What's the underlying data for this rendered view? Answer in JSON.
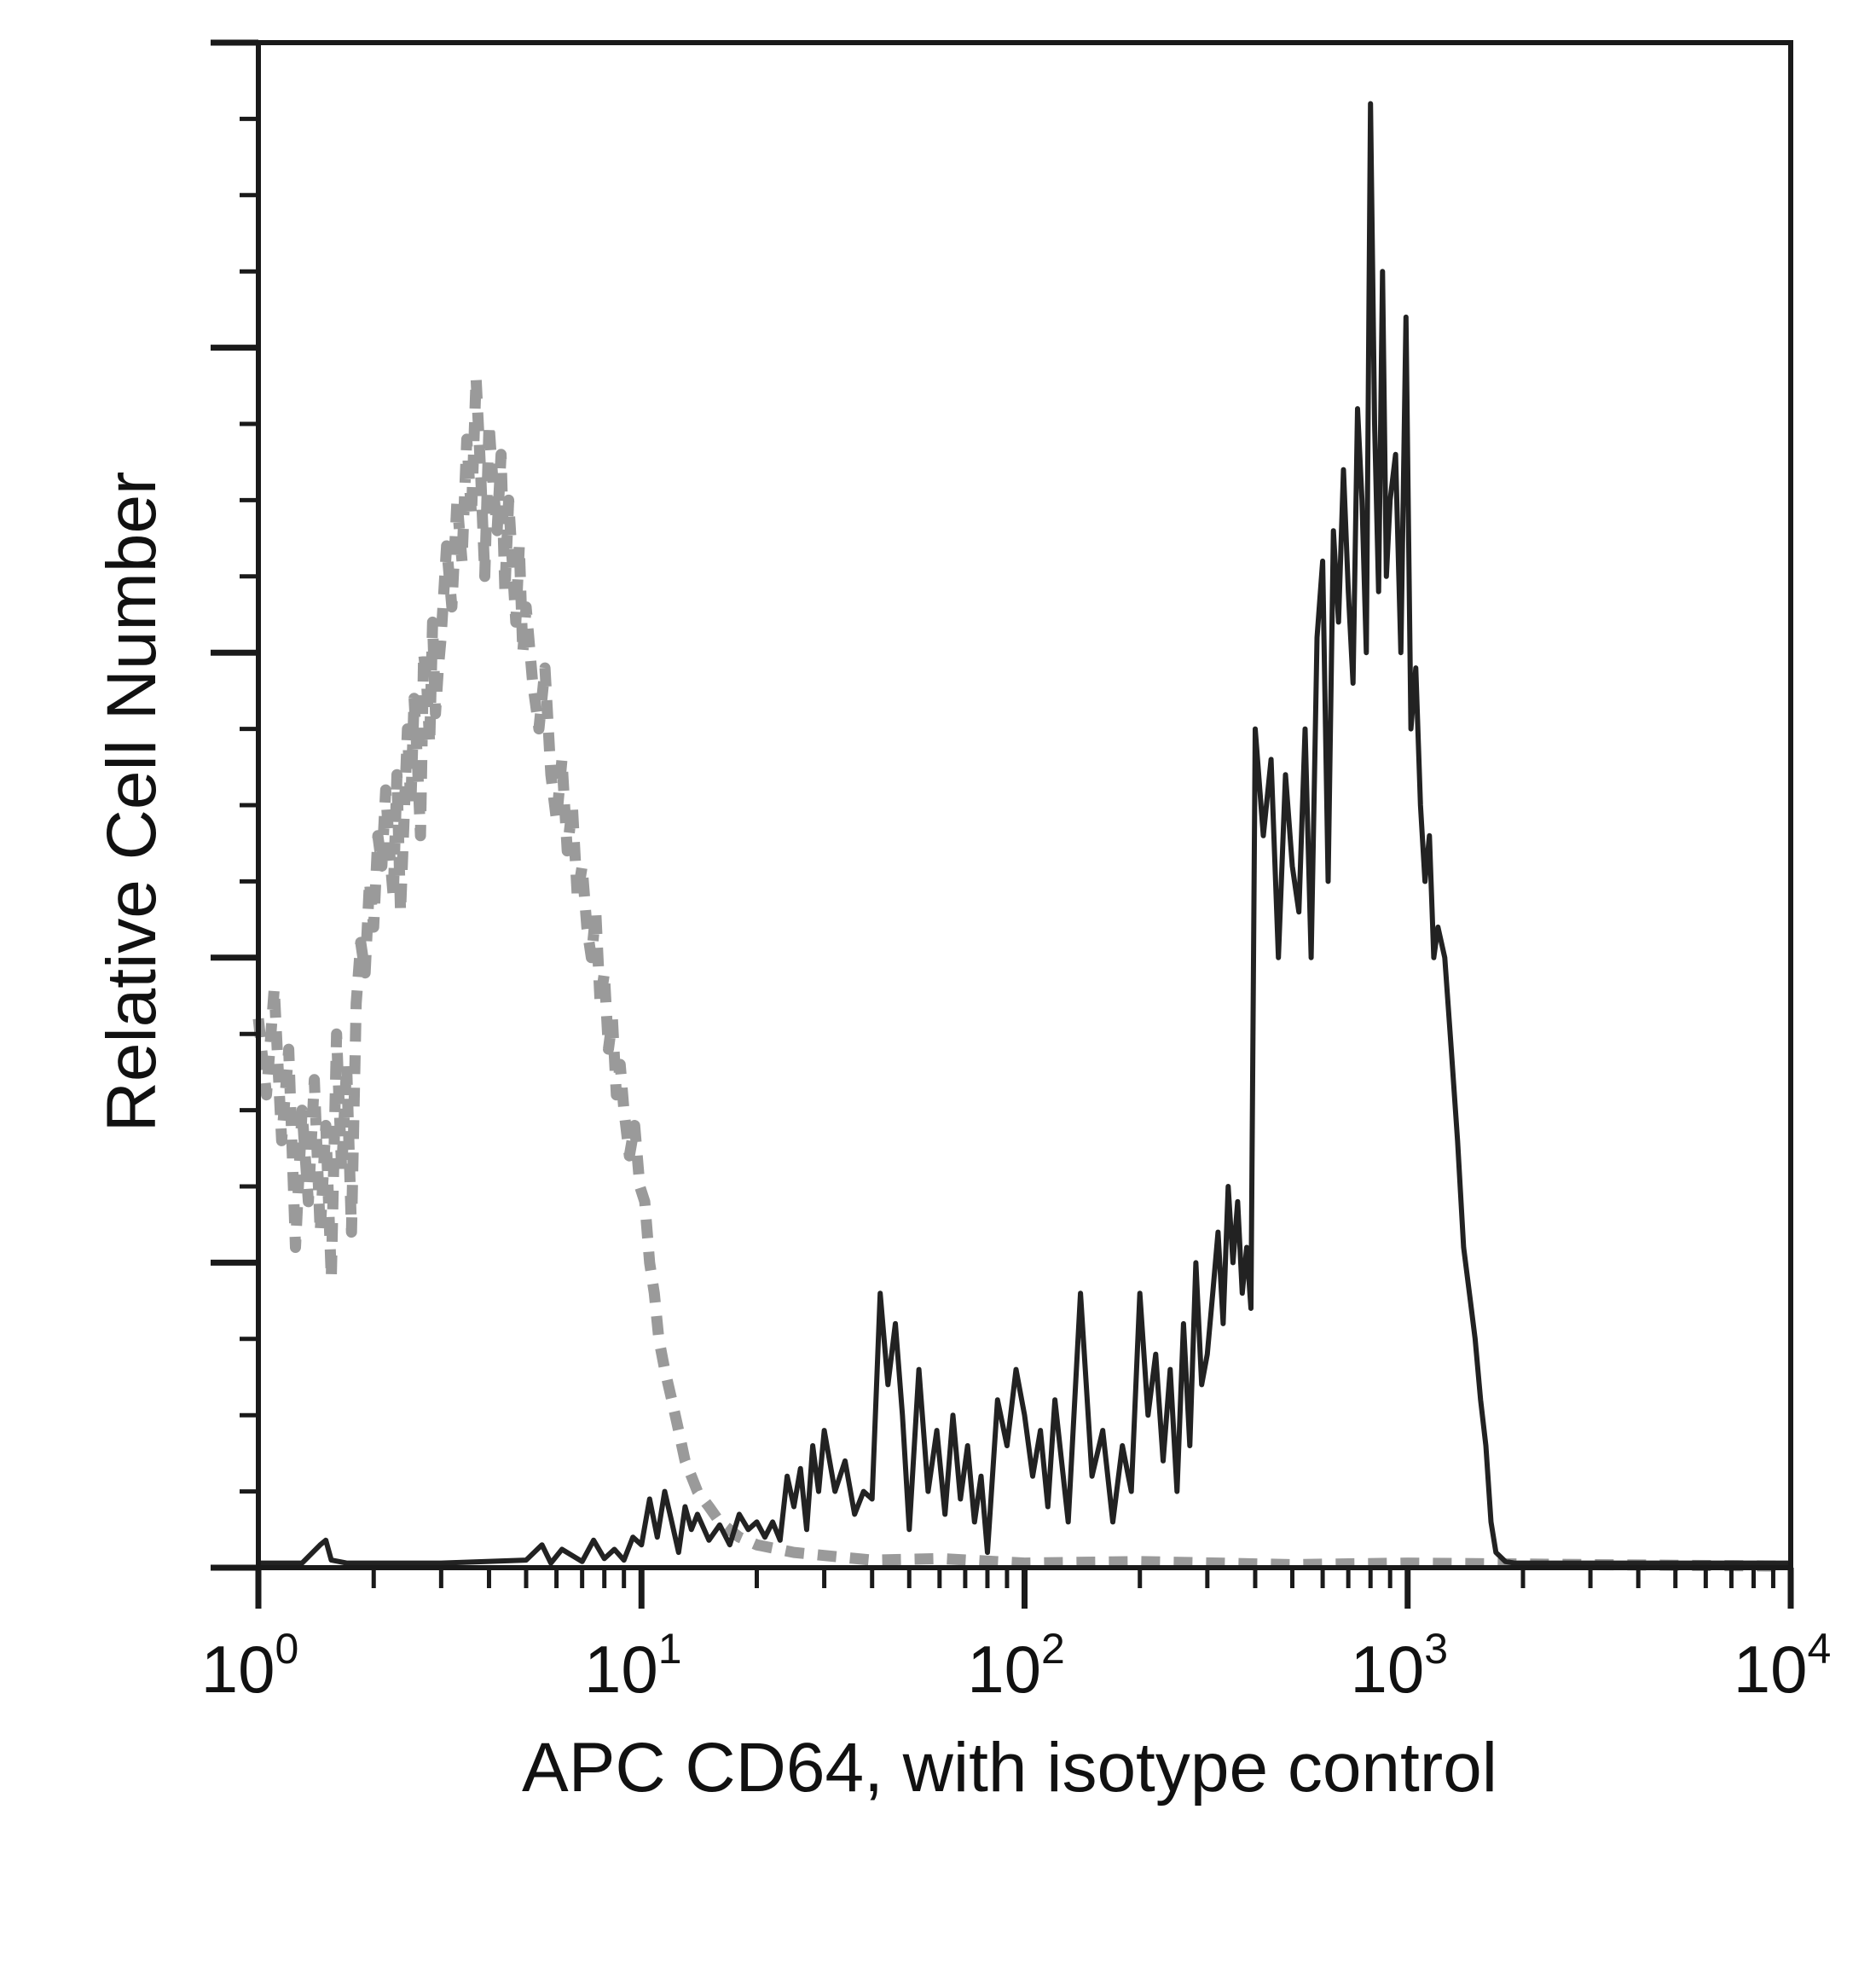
{
  "chart_data": {
    "type": "line",
    "title": "",
    "xlabel": "APC CD64, with isotype control",
    "ylabel": "Relative Cell Number",
    "x_scale": "log",
    "xlim": [
      1,
      10000
    ],
    "ylim": [
      0,
      100
    ],
    "grid": false,
    "legend": "none",
    "x_ticks": [
      {
        "base": "10",
        "exp": "0",
        "value": 1
      },
      {
        "base": "10",
        "exp": "1",
        "value": 10
      },
      {
        "base": "10",
        "exp": "2",
        "value": 100
      },
      {
        "base": "10",
        "exp": "3",
        "value": 1000
      },
      {
        "base": "10",
        "exp": "4",
        "value": 10000
      }
    ],
    "y_major_ticks": [
      0,
      20,
      40,
      60,
      80,
      100
    ],
    "y_minor_step": 5,
    "series": [
      {
        "color": "#9a9a9a",
        "style": "dashed",
        "x": [
          1.0,
          1.05,
          1.1,
          1.15,
          1.2,
          1.25,
          1.3,
          1.35,
          1.4,
          1.45,
          1.5,
          1.55,
          1.6,
          1.65,
          1.7,
          1.75,
          1.8,
          1.85,
          1.9,
          1.95,
          2.0,
          2.05,
          2.1,
          2.15,
          2.2,
          2.25,
          2.3,
          2.35,
          2.4,
          2.45,
          2.5,
          2.55,
          2.6,
          2.65,
          2.7,
          2.75,
          2.8,
          2.85,
          2.9,
          2.95,
          3.0,
          3.1,
          3.2,
          3.3,
          3.4,
          3.5,
          3.6,
          3.7,
          3.8,
          3.9,
          4.0,
          4.1,
          4.2,
          4.3,
          4.4,
          4.5,
          4.6,
          4.7,
          4.8,
          4.9,
          5.0,
          5.2,
          5.4,
          5.6,
          5.8,
          6.0,
          6.2,
          6.4,
          6.6,
          6.8,
          7.0,
          7.2,
          7.4,
          7.6,
          7.8,
          8.0,
          8.2,
          8.4,
          8.6,
          8.8,
          9.0,
          9.3,
          9.6,
          9.9,
          10.2,
          10.5,
          10.8,
          11.1,
          11.5,
          12.0,
          12.5,
          13.0,
          13.5,
          14.0,
          15.0,
          16.0,
          18.0,
          20.0,
          25.0,
          30.0,
          40.0,
          60.0,
          100.0,
          200.0,
          500.0,
          1000.0,
          3000.0,
          10000.0
        ],
        "values": [
          36,
          31,
          38,
          28,
          34,
          21,
          30,
          24,
          32,
          22,
          29,
          19,
          35,
          26,
          33,
          22,
          37,
          41,
          39,
          45,
          42,
          48,
          46,
          51,
          47,
          44,
          52,
          43,
          49,
          55,
          50,
          57,
          53,
          48,
          60,
          58,
          54,
          62,
          56,
          59,
          61,
          67,
          63,
          70,
          66,
          74,
          69,
          78,
          72,
          65,
          75,
          71,
          68,
          73,
          64,
          70,
          66,
          62,
          67,
          60,
          63,
          58,
          55,
          59,
          52,
          49,
          53,
          47,
          50,
          44,
          46,
          42,
          40,
          43,
          37,
          39,
          34,
          36,
          31,
          33,
          30,
          27,
          29,
          25,
          24,
          20,
          18,
          15,
          13,
          11,
          9,
          7,
          6,
          5,
          4,
          3,
          2,
          1.5,
          1,
          0.8,
          0.5,
          0.6,
          0.3,
          0.4,
          0.2,
          0.3,
          0.2,
          0.1
        ]
      },
      {
        "color": "#222222",
        "style": "solid",
        "x": [
          1.0,
          1.3,
          1.45,
          1.5,
          1.55,
          1.7,
          2.0,
          3.0,
          5.0,
          5.5,
          5.8,
          6.2,
          7.0,
          7.5,
          8.0,
          8.5,
          9.0,
          9.5,
          10.0,
          10.5,
          11.0,
          11.5,
          12.0,
          12.5,
          13.0,
          13.5,
          14.0,
          15.0,
          16.0,
          17.0,
          18.0,
          19.0,
          20.0,
          21.0,
          22.0,
          23.0,
          24.0,
          25.0,
          26.0,
          27.0,
          28.0,
          29.0,
          30.0,
          32.0,
          34.0,
          36.0,
          38.0,
          40.0,
          42.0,
          44.0,
          46.0,
          48.0,
          50.0,
          53.0,
          56.0,
          59.0,
          62.0,
          65.0,
          68.0,
          71.0,
          74.0,
          77.0,
          80.0,
          85.0,
          90.0,
          95.0,
          100.0,
          105.0,
          110.0,
          115.0,
          120.0,
          130.0,
          140.0,
          150.0,
          160.0,
          170.0,
          180.0,
          190.0,
          200.0,
          210.0,
          220.0,
          230.0,
          240.0,
          250.0,
          260.0,
          270.0,
          280.0,
          290.0,
          300.0,
          310.0,
          320.0,
          330.0,
          340.0,
          350.0,
          360.0,
          370.0,
          380.0,
          390.0,
          400.0,
          420.0,
          440.0,
          460.0,
          480.0,
          500.0,
          520.0,
          540.0,
          560.0,
          580.0,
          600.0,
          620.0,
          640.0,
          660.0,
          680.0,
          700.0,
          720.0,
          740.0,
          760.0,
          780.0,
          800.0,
          820.0,
          840.0,
          860.0,
          880.0,
          900.0,
          930.0,
          960.0,
          990.0,
          1020.0,
          1050.0,
          1080.0,
          1110.0,
          1140.0,
          1170.0,
          1200.0,
          1250.0,
          1300.0,
          1350.0,
          1400.0,
          1450.0,
          1500.0,
          1550.0,
          1600.0,
          1650.0,
          1700.0,
          1800.0,
          1900.0,
          2000.0,
          3000.0,
          5000.0,
          10000.0
        ],
        "values": [
          0.3,
          0.3,
          1.5,
          1.8,
          0.5,
          0.3,
          0.3,
          0.3,
          0.5,
          1.5,
          0.3,
          1.2,
          0.4,
          1.8,
          0.6,
          1.2,
          0.5,
          2.0,
          1.5,
          4.5,
          2.0,
          5.0,
          3.0,
          1.0,
          4.0,
          2.5,
          3.5,
          1.8,
          2.8,
          1.5,
          3.5,
          2.5,
          3.0,
          2.0,
          3.0,
          1.8,
          6.0,
          4.0,
          6.5,
          2.5,
          8.0,
          5.0,
          9.0,
          5.0,
          7.0,
          3.5,
          5.0,
          4.5,
          18.0,
          12.0,
          16.0,
          10.0,
          2.5,
          13.0,
          5.0,
          9.0,
          3.5,
          10.0,
          4.5,
          8.0,
          3.0,
          6.0,
          1.0,
          11.0,
          8.0,
          13.0,
          10.0,
          6.0,
          9.0,
          4.0,
          11.0,
          3.0,
          18.0,
          6.0,
          9.0,
          3.0,
          8.0,
          5.0,
          18.0,
          10.0,
          14.0,
          7.0,
          13.0,
          5.0,
          16.0,
          8.0,
          20.0,
          12.0,
          14.0,
          18.0,
          22.0,
          16.0,
          25.0,
          20.0,
          24.0,
          18.0,
          21.0,
          17.0,
          55.0,
          48.0,
          53.0,
          40.0,
          52.0,
          46.0,
          43.0,
          55.0,
          40.0,
          61.0,
          66.0,
          45.0,
          68.0,
          62.0,
          72.0,
          64.0,
          58.0,
          76.0,
          70.0,
          60.0,
          96.0,
          75.0,
          64.0,
          85.0,
          65.0,
          70.0,
          73.0,
          60.0,
          82.0,
          55.0,
          59.0,
          50.0,
          45.0,
          48.0,
          40.0,
          42.0,
          40.0,
          34.0,
          28.0,
          21.0,
          18.0,
          15.0,
          11.0,
          8.0,
          3.0,
          1.0,
          0.4,
          0.3,
          0.3,
          0.3,
          0.3,
          0.3
        ]
      }
    ]
  }
}
